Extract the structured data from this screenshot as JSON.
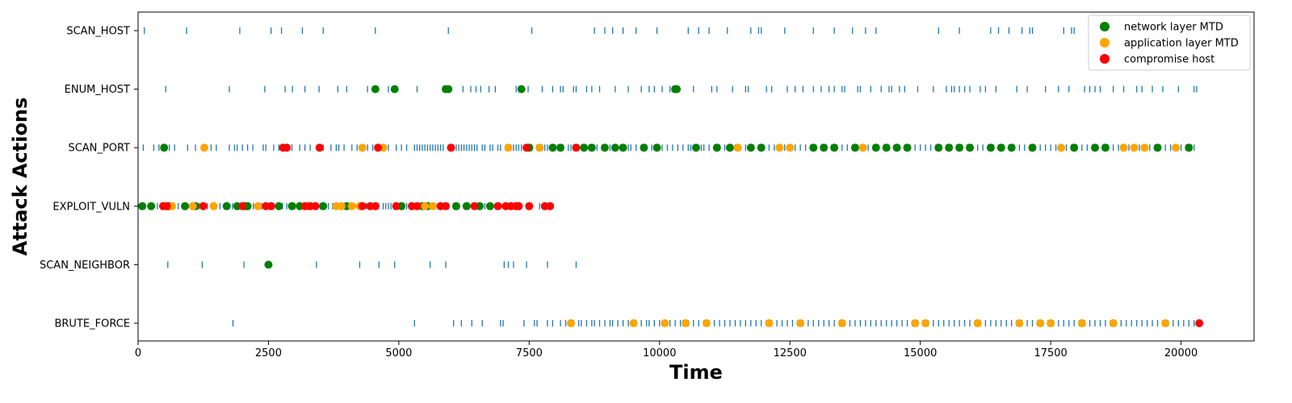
{
  "chart_data": {
    "type": "scatter",
    "title": "",
    "xlabel": "Time",
    "ylabel": "Attack Actions",
    "xlim": [
      0,
      21400
    ],
    "x_ticks": [
      0,
      2500,
      5000,
      7500,
      10000,
      12500,
      15000,
      17500,
      20000
    ],
    "categories": [
      "BRUTE_FORCE",
      "SCAN_NEIGHBOR",
      "EXPLOIT_VULN",
      "SCAN_PORT",
      "ENUM_HOST",
      "SCAN_HOST"
    ],
    "grid": false,
    "legend_position": "top-right",
    "action_series": {
      "color": "#1f77b4",
      "marker": "vertical-line",
      "events": {
        "SCAN_HOST": [
          120,
          930,
          1950,
          2550,
          2750,
          3150,
          3550,
          4550,
          5950,
          7550,
          8750,
          8950,
          9100,
          9300,
          9550,
          9950,
          10550,
          10750,
          10950,
          11300,
          11750,
          11900,
          11950,
          12400,
          12950,
          13350,
          13700,
          13950,
          14150,
          15350,
          15750,
          16350,
          16500,
          16700,
          16950,
          17100,
          17150,
          17750,
          17900,
          17950
        ],
        "ENUM_HOST": [
          530,
          1750,
          2430,
          2820,
          2960,
          3200,
          3470,
          3830,
          4000,
          4400,
          4550,
          4800,
          5350,
          5850,
          5950,
          6230,
          6380,
          6480,
          6570,
          6730,
          6850,
          7250,
          7480,
          7750,
          7950,
          8100,
          8150,
          8350,
          8400,
          8600,
          8700,
          8850,
          9150,
          9400,
          9650,
          9800,
          9900,
          10050,
          10200,
          10250,
          10300,
          10350,
          10650,
          11000,
          11100,
          11400,
          11650,
          11700,
          12050,
          12150,
          12450,
          12600,
          12750,
          12950,
          13100,
          13250,
          13350,
          13500,
          13550,
          13800,
          13850,
          14050,
          14250,
          14400,
          14450,
          14600,
          14700,
          14950,
          15250,
          15500,
          15600,
          15650,
          15750,
          15850,
          15950,
          16150,
          16250,
          16450,
          16850,
          17050,
          17400,
          17650,
          17850,
          18150,
          18250,
          18350,
          18450,
          18700,
          18900,
          19150,
          19250,
          19450,
          19650,
          19950,
          20250,
          20300
        ],
        "SCAN_PORT": [
          100,
          300,
          400,
          600,
          700,
          950,
          1100,
          1400,
          1500,
          1750,
          1850,
          1900,
          2000,
          2100,
          2200,
          2400,
          2450,
          2600,
          2700,
          2950,
          3100,
          3200,
          3300,
          3450,
          3550,
          3700,
          3800,
          3850,
          3950,
          4100,
          4200,
          4400,
          4500,
          4800,
          4950,
          5050,
          5150,
          5300,
          5350,
          5400,
          5450,
          5500,
          5550,
          5600,
          5650,
          5700,
          5750,
          5800,
          5850,
          5950,
          6050,
          6100,
          6150,
          6200,
          6250,
          6300,
          6350,
          6400,
          6450,
          6500,
          6600,
          6650,
          6750,
          6800,
          6900,
          6950,
          7050,
          7150,
          7200,
          7250,
          7300,
          7350,
          7450,
          7550,
          7650,
          7750,
          7800,
          7850,
          7950,
          8000,
          8050,
          8150,
          8250,
          8300,
          8350,
          8450,
          8550,
          8650,
          8700,
          8800,
          8900,
          8950,
          9050,
          9150,
          9250,
          9300,
          9400,
          9450,
          9550,
          9650,
          9750,
          9850,
          9950,
          10050,
          10150,
          10250,
          10350,
          10450,
          10550,
          10600,
          10700,
          10800,
          10850,
          10950,
          11050,
          11150,
          11250,
          11350,
          11450,
          11550,
          11650,
          11750,
          11800,
          11900,
          12000,
          12100,
          12200,
          12300,
          12400,
          12500,
          12600,
          12700,
          12800,
          12900,
          13000,
          13100,
          13200,
          13300,
          13400,
          13500,
          13600,
          13700,
          13800,
          13900,
          14000,
          14100,
          14200,
          14300,
          14400,
          14500,
          14600,
          14700,
          14800,
          14900,
          15000,
          15100,
          15200,
          15300,
          15400,
          15500,
          15600,
          15700,
          15800,
          15900,
          16000,
          16100,
          16200,
          16300,
          16400,
          16500,
          16600,
          16700,
          16800,
          16900,
          17000,
          17100,
          17200,
          17300,
          17400,
          17500,
          17600,
          17700,
          17800,
          17900,
          18000,
          18100,
          18200,
          18300,
          18400,
          18500,
          18600,
          18700,
          18800,
          18900,
          19000,
          19100,
          19200,
          19300,
          19400,
          19500,
          19600,
          19700,
          19800,
          19900,
          20000,
          20100,
          20200,
          20250
        ],
        "EXPLOIT_VULN": [
          50,
          130,
          210,
          290,
          370,
          450,
          530,
          610,
          690,
          770,
          850,
          930,
          1010,
          1090,
          1170,
          1250,
          1330,
          1410,
          1490,
          1570,
          1650,
          1730,
          1810,
          1890,
          1970,
          2050,
          2130,
          2210,
          2290,
          2370,
          2450,
          2530,
          2610,
          2690,
          2770,
          2850,
          2930,
          3010,
          3090,
          3170,
          3250,
          3330,
          3410,
          3490,
          3570,
          3650,
          3730,
          3810,
          3890,
          3970,
          4050,
          4130,
          4210,
          4290,
          4370,
          4450,
          4530,
          4610,
          4700,
          4750,
          4800,
          4850,
          4900,
          4950,
          5000,
          5050,
          5100,
          5150,
          5200,
          5250,
          5300,
          5350,
          5400,
          5450,
          5500,
          5550,
          5600,
          5650,
          5700,
          5750,
          5850,
          5950,
          6050,
          6150,
          6250,
          6350,
          6450,
          6550,
          6650,
          6750,
          6850,
          6950,
          7050,
          7150,
          7250,
          7350,
          7450,
          7550,
          7700,
          7900
        ],
        "SCAN_NEIGHBOR": [
          570,
          1230,
          2030,
          3420,
          4250,
          4620,
          4920,
          5600,
          5900,
          7020,
          7100,
          7200,
          7450,
          7850,
          8400
        ],
        "BRUTE_FORCE": [
          1820,
          5300,
          6050,
          6200,
          6400,
          6600,
          6950,
          7000,
          7400,
          7600,
          7650,
          7850,
          7950,
          8100,
          8200,
          8300,
          8350,
          8450,
          8500,
          8600,
          8700,
          8750,
          8850,
          8950,
          9050,
          9100,
          9200,
          9300,
          9400,
          9500,
          9550,
          9650,
          9750,
          9800,
          9900,
          10000,
          10100,
          10200,
          10300,
          10400,
          10450,
          10550,
          10650,
          10750,
          10850,
          10950,
          11050,
          11150,
          11250,
          11350,
          11450,
          11550,
          11650,
          11750,
          11850,
          11950,
          12050,
          12150,
          12250,
          12350,
          12450,
          12550,
          12650,
          12750,
          12850,
          12950,
          13050,
          13150,
          13250,
          13350,
          13450,
          13550,
          13650,
          13750,
          13850,
          13950,
          14050,
          14150,
          14250,
          14350,
          14450,
          14550,
          14650,
          14750,
          14850,
          14950,
          15050,
          15150,
          15250,
          15350,
          15450,
          15550,
          15650,
          15750,
          15850,
          15950,
          16050,
          16150,
          16250,
          16350,
          16450,
          16550,
          16650,
          16750,
          16850,
          16950,
          17050,
          17150,
          17250,
          17350,
          17450,
          17550,
          17650,
          17750,
          17850,
          17950,
          18050,
          18150,
          18250,
          18350,
          18450,
          18550,
          18650,
          18750,
          18850,
          18950,
          19050,
          19150,
          19250,
          19350,
          19450,
          19550,
          19650,
          19750,
          19850,
          19950,
          20050,
          20150,
          20250
        ]
      }
    },
    "series": [
      {
        "name": "network layer MTD",
        "color": "#008000",
        "points": {
          "ENUM_HOST": [
            4550,
            4920,
            5900,
            5950,
            7350,
            10300,
            10330
          ],
          "SCAN_PORT": [
            500,
            7500,
            7950,
            8100,
            8550,
            8700,
            8950,
            9150,
            9300,
            9700,
            9950,
            10700,
            11100,
            11350,
            11750,
            11950,
            12950,
            13150,
            13350,
            13750,
            14150,
            14350,
            14550,
            14750,
            15350,
            15550,
            15750,
            15950,
            16350,
            16550,
            16750,
            17150,
            17950,
            18350,
            18550,
            19550,
            20150
          ],
          "EXPLOIT_VULN": [
            80,
            250,
            600,
            900,
            1100,
            1700,
            1900,
            2050,
            2100,
            2700,
            2950,
            3100,
            3550,
            4000,
            5050,
            5450,
            5550,
            6100,
            6300,
            6550,
            6750
          ],
          "SCAN_NEIGHBOR": [
            2500
          ],
          "BRUTE_FORCE": []
        }
      },
      {
        "name": "application layer MTD",
        "color": "#ffa500",
        "points": {
          "ENUM_HOST": [],
          "SCAN_PORT": [
            1270,
            4300,
            4700,
            7100,
            7700,
            11500,
            12300,
            12500,
            13900,
            17700,
            18900,
            19100,
            19300,
            19900
          ],
          "EXPLOIT_VULN": [
            650,
            1050,
            1450,
            2300,
            3250,
            3800,
            3900,
            4100,
            4250,
            5500,
            5650
          ],
          "SCAN_NEIGHBOR": [],
          "BRUTE_FORCE": [
            8300,
            9500,
            10100,
            10500,
            10900,
            12100,
            12700,
            13500,
            14900,
            15100,
            16100,
            16900,
            17300,
            17500,
            18100,
            18700,
            19700
          ]
        }
      },
      {
        "name": "compromise host",
        "color": "#ff0000",
        "points": {
          "ENUM_HOST": [],
          "SCAN_PORT": [
            2780,
            2850,
            3480,
            4600,
            6000,
            7450,
            8400
          ],
          "EXPLOIT_VULN": [
            480,
            550,
            1250,
            2000,
            2450,
            2550,
            3200,
            3300,
            3400,
            4300,
            4450,
            4550,
            4950,
            5250,
            5350,
            5800,
            5900,
            6450,
            6900,
            7050,
            7150,
            7250,
            7300,
            7500,
            7800,
            7900
          ],
          "SCAN_NEIGHBOR": [],
          "BRUTE_FORCE": [
            20350
          ]
        }
      }
    ]
  }
}
